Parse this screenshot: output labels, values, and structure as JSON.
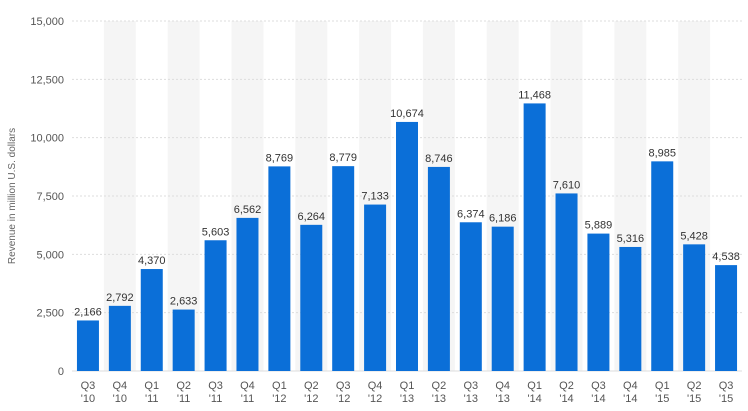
{
  "chart_data": {
    "type": "bar",
    "categories": [
      "Q3 '10",
      "Q4 '10",
      "Q1 '11",
      "Q2 '11",
      "Q3 '11",
      "Q4 '11",
      "Q1 '12",
      "Q2 '12",
      "Q3 '12",
      "Q4 '12",
      "Q1 '13",
      "Q2 '13",
      "Q3 '13",
      "Q4 '13",
      "Q1 '14",
      "Q2 '14",
      "Q3 '14",
      "Q4 '14",
      "Q1 '15",
      "Q2 '15",
      "Q3 '15"
    ],
    "category_lines": [
      [
        "Q3",
        "'10"
      ],
      [
        "Q4",
        "'10"
      ],
      [
        "Q1",
        "'11"
      ],
      [
        "Q2",
        "'11"
      ],
      [
        "Q3",
        "'11"
      ],
      [
        "Q4",
        "'11"
      ],
      [
        "Q1",
        "'12"
      ],
      [
        "Q2",
        "'12"
      ],
      [
        "Q3",
        "'12"
      ],
      [
        "Q4",
        "'12"
      ],
      [
        "Q1",
        "'13"
      ],
      [
        "Q2",
        "'13"
      ],
      [
        "Q3",
        "'13"
      ],
      [
        "Q4",
        "'13"
      ],
      [
        "Q1",
        "'14"
      ],
      [
        "Q2",
        "'14"
      ],
      [
        "Q3",
        "'14"
      ],
      [
        "Q4",
        "'14"
      ],
      [
        "Q1",
        "'15"
      ],
      [
        "Q2",
        "'15"
      ],
      [
        "Q3",
        "'15"
      ]
    ],
    "values": [
      2166,
      2792,
      4370,
      2633,
      5603,
      6562,
      8769,
      6264,
      8779,
      7133,
      10674,
      8746,
      6374,
      6186,
      11468,
      7610,
      5889,
      5316,
      8985,
      5428,
      4538
    ],
    "value_labels": [
      "2,166",
      "2,792",
      "4,370",
      "2,633",
      "5,603",
      "6,562",
      "8,769",
      "6,264",
      "8,779",
      "7,133",
      "10,674",
      "8,746",
      "6,374",
      "6,186",
      "11,468",
      "7,610",
      "5,889",
      "5,316",
      "8,985",
      "5,428",
      "4,538"
    ],
    "ylabel": "Revenue in million U.S. dollars",
    "ylim": [
      0,
      15000
    ],
    "yticks": [
      0,
      2500,
      5000,
      7500,
      10000,
      12500,
      15000
    ],
    "ytick_labels": [
      "0",
      "2,500",
      "5,000",
      "7,500",
      "10,000",
      "12,500",
      "15,000"
    ],
    "grid": true,
    "alternating_column_shading": true,
    "colors": {
      "bar": "#0b6fd8",
      "stripe": "#f5f5f5",
      "grid": "#dddddd"
    }
  }
}
